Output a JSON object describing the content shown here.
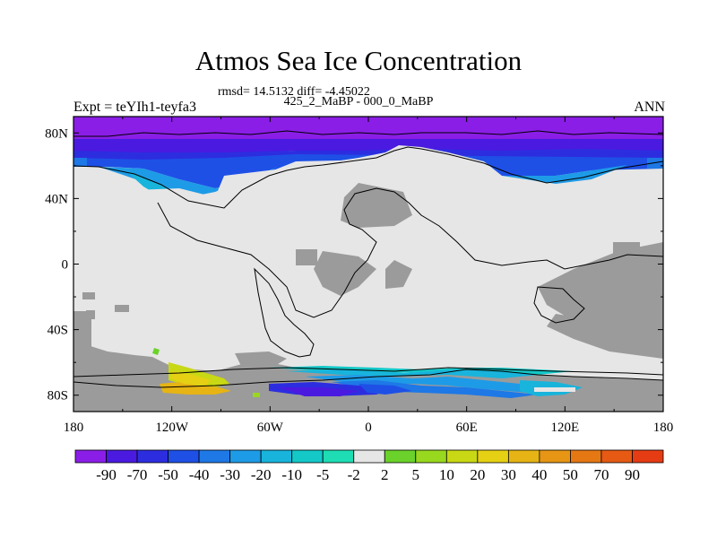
{
  "chart_data": {
    "type": "heatmap",
    "title": "Atmos Sea Ice Concentration",
    "stats_text": "rmsd= 14.5132  diff= -4.45022",
    "subtitle": "425_2_MaBP - 000_0_MaBP",
    "left_label": "Expt = teYIh1-teyfa3",
    "right_label": "ANN",
    "x_ticks": [
      "180",
      "120W",
      "60W",
      "0",
      "60E",
      "120E",
      "180"
    ],
    "y_ticks": [
      "80N",
      "40N",
      "0",
      "40S",
      "80S"
    ],
    "xlim": [
      -180,
      180
    ],
    "ylim": [
      -90,
      90
    ],
    "colorbar": {
      "labels": [
        "-90",
        "-70",
        "-50",
        "-40",
        "-30",
        "-20",
        "-10",
        "-5",
        "-2",
        "2",
        "5",
        "10",
        "20",
        "30",
        "40",
        "50",
        "70",
        "90"
      ],
      "colors": [
        "#8a1ee6",
        "#4a1ae0",
        "#2d2de0",
        "#1e50e6",
        "#1e78e6",
        "#1e9be6",
        "#18b4dc",
        "#14c8c8",
        "#1edcb4",
        "#e6e6e6",
        "#6ad22a",
        "#98d81e",
        "#c8d814",
        "#e6d014",
        "#e6b414",
        "#e69614",
        "#e67814",
        "#e65a14",
        "#e63c14"
      ]
    },
    "regions": {
      "ocean_ice": "#e6e6e6",
      "land_mask": "#9b9b9b"
    }
  }
}
